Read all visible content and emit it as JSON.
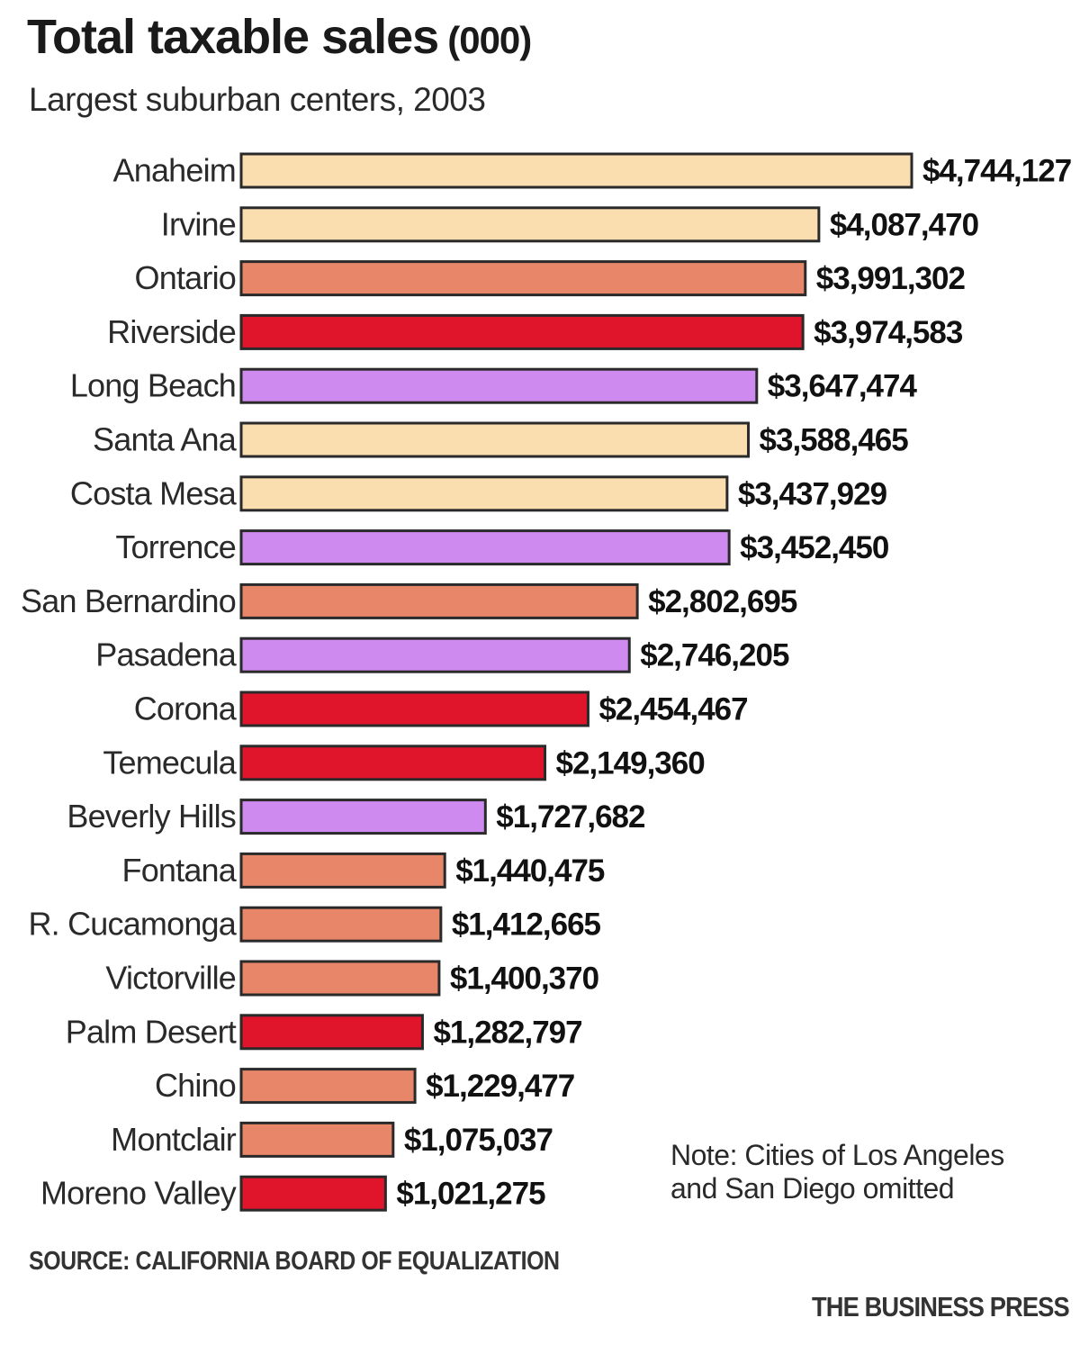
{
  "header": {
    "title": "Total taxable sales",
    "title_unit": "(000)",
    "subtitle": "Largest suburban centers, 2003"
  },
  "chart_data": {
    "type": "bar",
    "orientation": "horizontal",
    "title": "Total taxable sales (000)",
    "subtitle": "Largest suburban centers, 2003",
    "xlabel": "",
    "ylabel": "",
    "xlim": [
      0,
      4744127
    ],
    "grid": false,
    "legend": "none",
    "categories": [
      "Anaheim",
      "Irvine",
      "Ontario",
      "Riverside",
      "Long Beach",
      "Santa Ana",
      "Costa Mesa",
      "Torrence",
      "San Bernardino",
      "Pasadena",
      "Corona",
      "Temecula",
      "Beverly Hills",
      "Fontana",
      "R. Cucamonga",
      "Victorville",
      "Palm Desert",
      "Chino",
      "Montclair",
      "Moreno Valley"
    ],
    "values": [
      4744127,
      4087470,
      3991302,
      3974583,
      3647474,
      3588465,
      3437929,
      3452450,
      2802695,
      2746205,
      2454467,
      2149360,
      1727682,
      1440475,
      1412665,
      1400370,
      1282797,
      1229477,
      1075037,
      1021275
    ],
    "labels": [
      "$4,744,127",
      "$4,087,470",
      "$3,991,302",
      "$3,974,583",
      "$3,647,474",
      "$3,588,465",
      "$3,437,929",
      "$3,452,450",
      "$2,802,695",
      "$2,746,205",
      "$2,454,467",
      "$2,149,360",
      "$1,727,682",
      "$1,440,475",
      "$1,412,665",
      "$1,400,370",
      "$1,282,797",
      "$1,229,477",
      "$1,075,037",
      "$1,021,275"
    ],
    "colors": [
      "#fbdeb0",
      "#fbdeb0",
      "#e8866a",
      "#e0142a",
      "#cf8af0",
      "#fbdeb0",
      "#fbdeb0",
      "#cf8af0",
      "#e8866a",
      "#cf8af0",
      "#e0142a",
      "#e0142a",
      "#cf8af0",
      "#e8866a",
      "#e8866a",
      "#e8866a",
      "#e0142a",
      "#e8866a",
      "#e8866a",
      "#e0142a"
    ]
  },
  "footer": {
    "note": "Note: Cities of Los Angeles and San Diego omitted",
    "source": "SOURCE: CALIFORNIA BOARD OF EQUALIZATION",
    "credit": "THE BUSINESS PRESS"
  }
}
